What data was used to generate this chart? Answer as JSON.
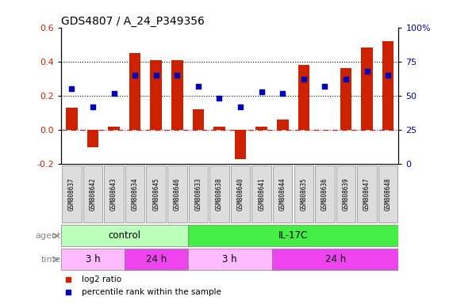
{
  "title": "GDS4807 / A_24_P349356",
  "samples": [
    "GSM808637",
    "GSM808642",
    "GSM808643",
    "GSM808634",
    "GSM808645",
    "GSM808646",
    "GSM808633",
    "GSM808638",
    "GSM808640",
    "GSM808641",
    "GSM808644",
    "GSM808635",
    "GSM808636",
    "GSM808639",
    "GSM808647",
    "GSM808648"
  ],
  "log2_ratio": [
    0.13,
    -0.1,
    0.02,
    0.45,
    0.41,
    0.41,
    0.12,
    0.02,
    -0.17,
    0.02,
    0.06,
    0.38,
    0.0,
    0.36,
    0.48,
    0.52
  ],
  "percentile_rank": [
    55,
    42,
    52,
    65,
    65,
    65,
    57,
    48,
    42,
    53,
    52,
    62,
    57,
    62,
    68,
    65
  ],
  "bar_color": "#cc2200",
  "dot_color": "#0000bb",
  "ylim_left": [
    -0.2,
    0.6
  ],
  "ylim_right": [
    0,
    100
  ],
  "yticks_left": [
    -0.2,
    0.0,
    0.2,
    0.4,
    0.6
  ],
  "yticks_right": [
    0,
    25,
    50,
    75,
    100
  ],
  "hlines": [
    0.2,
    0.4
  ],
  "agent_groups": [
    {
      "label": "control",
      "start": 0,
      "end": 6,
      "color": "#bbffbb"
    },
    {
      "label": "IL-17C",
      "start": 6,
      "end": 16,
      "color": "#44ee44"
    }
  ],
  "time_groups": [
    {
      "label": "3 h",
      "start": 0,
      "end": 3,
      "color": "#ffbbff"
    },
    {
      "label": "24 h",
      "start": 3,
      "end": 6,
      "color": "#ee44ee"
    },
    {
      "label": "3 h",
      "start": 6,
      "end": 10,
      "color": "#ffbbff"
    },
    {
      "label": "24 h",
      "start": 10,
      "end": 16,
      "color": "#ee44ee"
    }
  ],
  "legend_items": [
    {
      "label": "log2 ratio",
      "color": "#cc2200"
    },
    {
      "label": "percentile rank within the sample",
      "color": "#0000bb"
    }
  ],
  "background_color": "#ffffff",
  "label_box_color": "#dddddd",
  "label_box_edge": "#888888"
}
